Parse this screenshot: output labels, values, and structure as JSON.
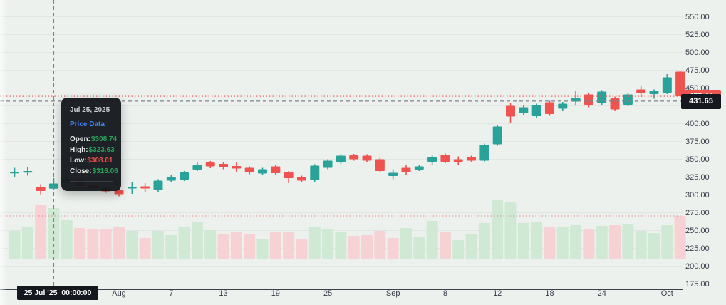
{
  "chart_data": {
    "type": "candlestick",
    "has_volume_pane": true,
    "volume_units": "relative-height",
    "y_axis": {
      "min": 175,
      "max": 550,
      "step": 25,
      "labels": [
        "550.00",
        "525.00",
        "500.00",
        "475.00",
        "450.00",
        "425.00",
        "400.00",
        "375.00",
        "350.00",
        "325.00",
        "300.00",
        "275.00",
        "250.00",
        "225.00",
        "200.00",
        "175.00"
      ],
      "grid": true
    },
    "x_ticks": [
      {
        "label": "Aug",
        "index": 8
      },
      {
        "label": "7",
        "index": 12
      },
      {
        "label": "13",
        "index": 16
      },
      {
        "label": "19",
        "index": 20
      },
      {
        "label": "25",
        "index": 24
      },
      {
        "label": "Sep",
        "index": 29
      },
      {
        "label": "8",
        "index": 33
      },
      {
        "label": "12",
        "index": 37
      },
      {
        "label": "18",
        "index": 41
      },
      {
        "label": "24",
        "index": 45
      },
      {
        "label": "Oct",
        "index": 50
      }
    ],
    "columns": [
      "date",
      "open",
      "high",
      "low",
      "close",
      "volume_rel",
      "volume_color"
    ],
    "candles": [
      [
        "Jul 22",
        330.5,
        338.0,
        325.5,
        332.5,
        39,
        "up"
      ],
      [
        "Jul 23",
        331.5,
        338.5,
        327.0,
        333.5,
        45,
        "up"
      ],
      [
        "Jul 24",
        311.5,
        315.0,
        301.0,
        305.5,
        76,
        "down"
      ],
      [
        "Jul 25",
        308.74,
        323.63,
        308.01,
        316.06,
        71,
        "up"
      ],
      [
        "Jul 28",
        316.5,
        324.5,
        314.0,
        322.0,
        54,
        "up"
      ],
      [
        "Jul 29",
        321.0,
        323.0,
        312.5,
        314.5,
        43,
        "down"
      ],
      [
        "Jul 30",
        314.5,
        316.5,
        307.0,
        309.0,
        41,
        "down"
      ],
      [
        "Jul 31",
        309.5,
        311.5,
        303.0,
        305.0,
        42,
        "down"
      ],
      [
        "Aug 1",
        306.5,
        309.0,
        298.0,
        301.0,
        44,
        "down"
      ],
      [
        "Aug 4",
        309.0,
        318.0,
        301.5,
        311.5,
        39,
        "up"
      ],
      [
        "Aug 5",
        312.0,
        316.5,
        303.5,
        309.0,
        29,
        "down"
      ],
      [
        "Aug 6",
        306.5,
        322.0,
        304.5,
        320.0,
        39,
        "up"
      ],
      [
        "Aug 7",
        320.0,
        327.5,
        318.0,
        325.5,
        33,
        "up"
      ],
      [
        "Aug 8",
        321.5,
        333.5,
        319.5,
        331.5,
        44,
        "up"
      ],
      [
        "Aug 11",
        335.5,
        346.5,
        333.5,
        341.5,
        51,
        "up"
      ],
      [
        "Aug 12",
        345.5,
        347.5,
        337.5,
        340.0,
        40,
        "up"
      ],
      [
        "Aug 13",
        343.5,
        345.5,
        336.0,
        338.5,
        34,
        "down"
      ],
      [
        "Aug 14",
        340.5,
        345.5,
        331.5,
        337.0,
        38,
        "down"
      ],
      [
        "Aug 15",
        338.0,
        340.0,
        329.0,
        331.5,
        35,
        "down"
      ],
      [
        "Aug 18",
        330.0,
        338.0,
        328.0,
        336.0,
        28,
        "up"
      ],
      [
        "Aug 19",
        340.0,
        342.0,
        328.5,
        330.5,
        37,
        "down"
      ],
      [
        "Aug 20",
        331.5,
        333.5,
        316.5,
        323.5,
        38,
        "down"
      ],
      [
        "Aug 21",
        325.0,
        327.0,
        317.5,
        320.0,
        27,
        "down"
      ],
      [
        "Aug 22",
        320.5,
        343.0,
        318.5,
        341.0,
        45,
        "up"
      ],
      [
        "Aug 25",
        338.0,
        350.0,
        336.0,
        348.0,
        42,
        "up"
      ],
      [
        "Aug 26",
        345.5,
        357.0,
        343.5,
        355.0,
        38,
        "up"
      ],
      [
        "Aug 27",
        355.5,
        357.5,
        348.0,
        350.0,
        32,
        "down"
      ],
      [
        "Aug 28",
        355.0,
        357.0,
        346.0,
        348.0,
        33,
        "down"
      ],
      [
        "Aug 29",
        350.0,
        352.0,
        331.5,
        333.5,
        39,
        "down"
      ],
      [
        "Sep 2",
        326.5,
        336.0,
        322.0,
        331.0,
        29,
        "down"
      ],
      [
        "Sep 3",
        338.0,
        342.5,
        327.5,
        331.5,
        43,
        "up"
      ],
      [
        "Sep 4",
        335.5,
        342.0,
        333.5,
        340.0,
        30,
        "up"
      ],
      [
        "Sep 5",
        346.5,
        355.5,
        342.0,
        353.0,
        53,
        "up"
      ],
      [
        "Sep 8",
        356.0,
        358.0,
        344.5,
        346.5,
        37,
        "down"
      ],
      [
        "Sep 9",
        350.0,
        354.0,
        342.5,
        346.5,
        26,
        "up"
      ],
      [
        "Sep 10",
        353.0,
        355.0,
        346.0,
        348.0,
        35,
        "up"
      ],
      [
        "Sep 11",
        348.0,
        372.0,
        346.0,
        370.0,
        50,
        "up"
      ],
      [
        "Sep 12",
        371.0,
        398.0,
        369.0,
        396.0,
        82,
        "up"
      ],
      [
        "Sep 15",
        425.0,
        429.0,
        401.5,
        410.0,
        79,
        "up"
      ],
      [
        "Sep 16",
        415.0,
        425.5,
        412.0,
        423.0,
        50,
        "up"
      ],
      [
        "Sep 17",
        410.5,
        428.0,
        408.5,
        426.0,
        51,
        "up"
      ],
      [
        "Sep 18",
        430.0,
        432.0,
        411.0,
        413.5,
        44,
        "down"
      ],
      [
        "Sep 19",
        421.0,
        430.5,
        417.5,
        428.0,
        45,
        "up"
      ],
      [
        "Sep 22",
        431.0,
        445.5,
        426.5,
        436.0,
        47,
        "up"
      ],
      [
        "Sep 23",
        441.0,
        443.5,
        423.0,
        426.5,
        41,
        "down"
      ],
      [
        "Sep 24",
        428.5,
        447.0,
        426.0,
        445.0,
        46,
        "up"
      ],
      [
        "Sep 25",
        435.5,
        438.0,
        417.5,
        420.0,
        47,
        "down"
      ],
      [
        "Sep 26",
        426.5,
        443.5,
        424.5,
        441.0,
        49,
        "up"
      ],
      [
        "Sep 29",
        448.0,
        453.5,
        437.5,
        443.0,
        39,
        "up"
      ],
      [
        "Sep 30",
        441.5,
        448.0,
        435.0,
        446.0,
        36,
        "up"
      ],
      [
        "Oct 1",
        443.5,
        469.5,
        441.5,
        465.0,
        47,
        "up"
      ],
      [
        "Oct 2",
        473.0,
        474.0,
        437.5,
        438.44,
        60,
        "down"
      ]
    ],
    "last_price": {
      "value": 438.44,
      "label": "438.44"
    },
    "crosshair": {
      "index": 3,
      "price": 431.65,
      "price_label": "431.65",
      "time_label": "25 Jul '25  00:00:00"
    }
  },
  "tooltip": {
    "date": "Jul 25, 2025",
    "title": "Price Data",
    "rows": [
      {
        "label": "Open:",
        "value": "$308.74",
        "color": "up"
      },
      {
        "label": "High:",
        "value": "$323.63",
        "color": "up"
      },
      {
        "label": "Low:",
        "value": "$308.01",
        "color": "down"
      },
      {
        "label": "Close:",
        "value": "$316.06",
        "color": "down_value_red"
      }
    ]
  },
  "colors": {
    "background": "#edf1ee",
    "up": "#29a39a",
    "down": "#ef5350",
    "volume_up": "#cfe9d5",
    "volume_down": "#f7d2d4",
    "grid": "rgba(70,90,75,0.07)",
    "crosshair": "#7b828e",
    "last_price_line": "#ef5350",
    "label_dark_bg": "#15181e",
    "tooltip_value_up": "#27a35c",
    "tooltip_value_down": "#e5504a",
    "tooltip_title_blue": "#4285f4"
  }
}
